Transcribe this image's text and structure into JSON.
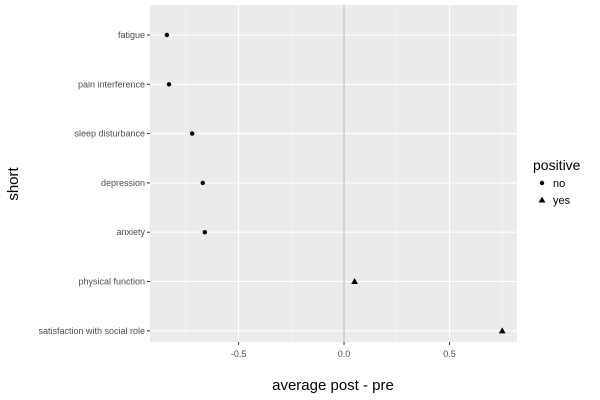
{
  "chart_data": {
    "type": "scatter",
    "title": "",
    "xlabel": "average post - pre",
    "ylabel": "short",
    "xlim": [
      -0.92,
      0.82
    ],
    "x_ticks": [
      -0.5,
      0.0,
      0.5
    ],
    "x_tick_labels": [
      "-0.5",
      "0.0",
      "0.5"
    ],
    "categories": [
      "fatigue",
      "pain interference",
      "sleep disturbance",
      "depression",
      "anxiety",
      "physical function",
      "satisfaction with social role"
    ],
    "reference_line_x": 0,
    "series": [
      {
        "name": "no",
        "marker": "circle",
        "points": [
          {
            "category": "fatigue",
            "x": -0.84
          },
          {
            "category": "pain interference",
            "x": -0.83
          },
          {
            "category": "sleep disturbance",
            "x": -0.72
          },
          {
            "category": "depression",
            "x": -0.67
          },
          {
            "category": "anxiety",
            "x": -0.66
          }
        ]
      },
      {
        "name": "yes",
        "marker": "triangle",
        "points": [
          {
            "category": "physical function",
            "x": 0.05
          },
          {
            "category": "satisfaction with social role",
            "x": 0.75
          }
        ]
      }
    ],
    "legend": {
      "title": "positive",
      "position": "right",
      "entries": [
        "no",
        "yes"
      ]
    },
    "grid": true,
    "colors": {
      "panel": "#ebebeb",
      "grid_major": "#ffffff",
      "reference_line": "#c2c2c2",
      "points": "#000000",
      "tick_text": "#4d4d4d"
    }
  }
}
